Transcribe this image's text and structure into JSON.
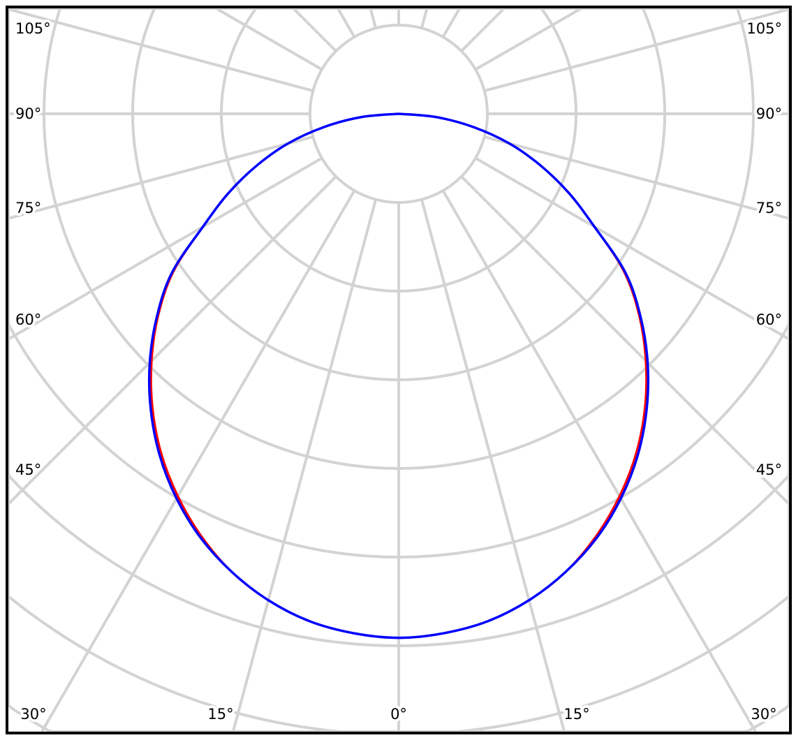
{
  "chart_data": {
    "type": "line",
    "subtype": "polar",
    "title": "",
    "angle_unit": "degrees",
    "angle_zero": "bottom",
    "radial_grid_step_deg": 15,
    "ring_count": 8,
    "grid": true,
    "angle_labels": {
      "left": [
        "105°",
        "90°",
        "75°",
        "60°",
        "45°"
      ],
      "right": [
        "105°",
        "90°",
        "75°",
        "60°",
        "45°"
      ],
      "bottom": [
        "30°",
        "15°",
        "0°",
        "15°",
        "30°"
      ]
    },
    "angles": [
      0,
      5,
      10,
      15,
      20,
      25,
      30,
      35,
      40,
      45,
      50,
      55,
      60,
      65,
      70,
      75,
      80,
      85,
      90
    ],
    "series": [
      {
        "color": "#ff0000",
        "symmetric": true,
        "values": [
          5.91,
          5.88,
          5.81,
          5.68,
          5.5,
          5.26,
          4.98,
          4.67,
          4.32,
          3.94,
          3.54,
          3.1,
          2.55,
          2.12,
          1.7,
          1.29,
          0.85,
          0.42,
          0
        ]
      },
      {
        "color": "#0000ff",
        "symmetric": true,
        "values": [
          5.91,
          5.88,
          5.81,
          5.68,
          5.5,
          5.28,
          5.01,
          4.7,
          4.35,
          3.97,
          3.56,
          3.12,
          2.55,
          2.12,
          1.7,
          1.29,
          0.85,
          0.42,
          0
        ]
      }
    ],
    "colors": {
      "grid": "#d3d3d3",
      "frame": "#000000"
    }
  }
}
